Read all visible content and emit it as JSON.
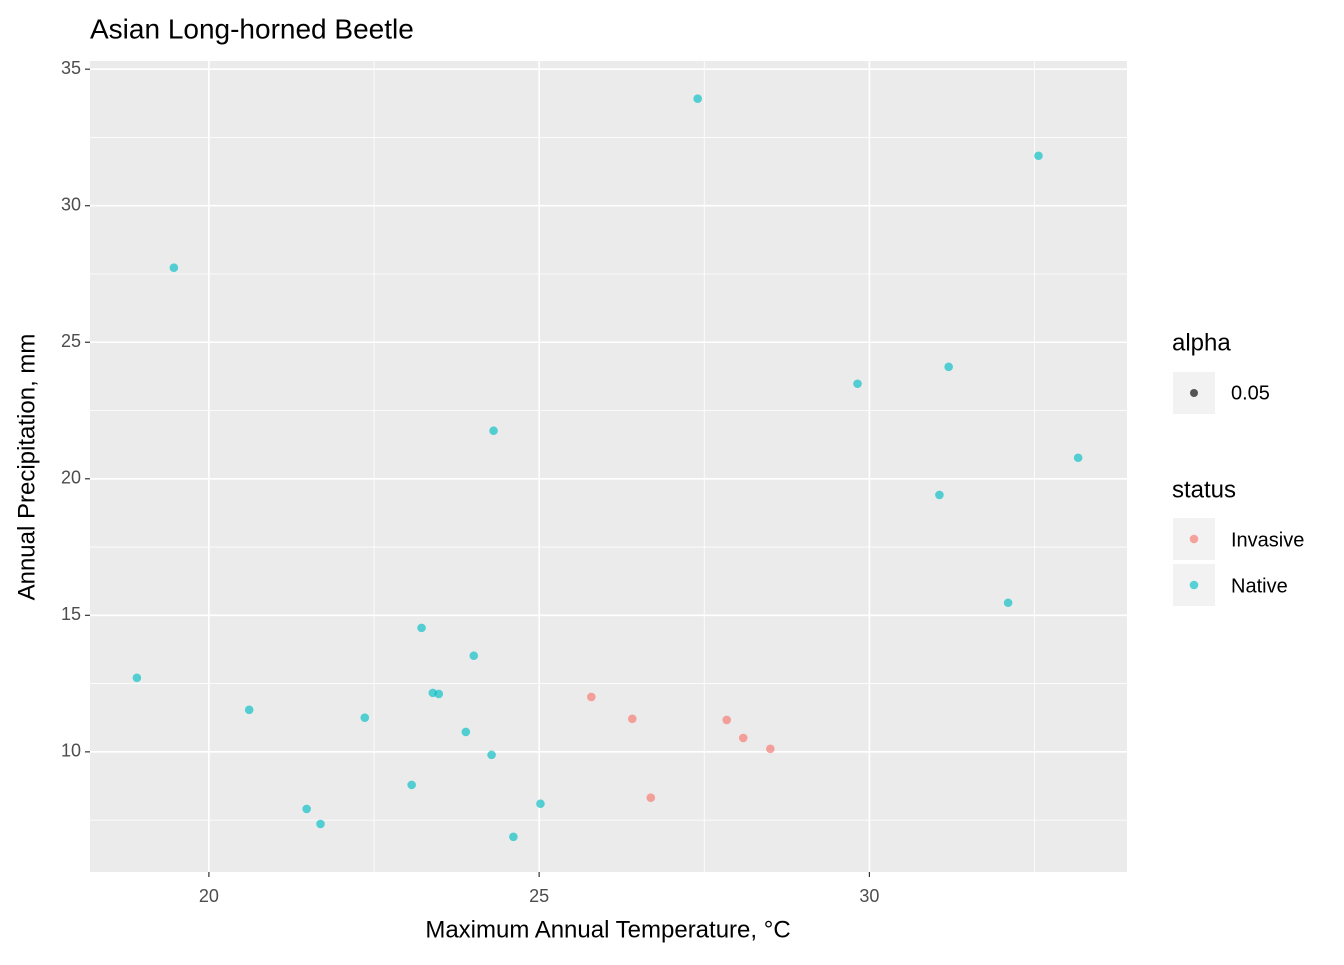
{
  "chart_data": {
    "type": "scatter",
    "title": "Asian Long-horned Beetle",
    "x_label": "Maximum Annual Temperature, °C",
    "y_label": "Annual Precipitation, mm",
    "xlim": [
      18.2,
      33.9
    ],
    "ylim": [
      5.6,
      35.3
    ],
    "xticks": [
      20,
      25,
      30
    ],
    "yticks": [
      10,
      15,
      20,
      25,
      30,
      35
    ],
    "grid": true,
    "legend_position": "right",
    "opacity": 0.65,
    "alpha_legend": {
      "title": "alpha",
      "label": "0.05"
    },
    "legend_title": "status",
    "series": [
      {
        "name": "Invasive",
        "color": "#F8766D",
        "x": [
          25.79,
          26.41,
          26.69,
          27.84,
          28.09,
          28.5
        ],
        "values": [
          12.01,
          11.21,
          8.32,
          11.17,
          10.51,
          10.11
        ]
      },
      {
        "name": "Native",
        "color": "#00BFC4",
        "x": [
          19.47,
          18.91,
          20.61,
          22.36,
          21.48,
          21.69,
          23.07,
          23.22,
          24.01,
          23.39,
          23.48,
          23.89,
          24.28,
          24.31,
          24.61,
          25.02,
          27.4,
          29.82,
          31.2,
          31.06,
          32.1,
          32.56,
          33.16
        ],
        "values": [
          27.73,
          12.71,
          11.54,
          11.25,
          7.91,
          7.36,
          8.79,
          14.54,
          13.52,
          12.16,
          12.12,
          10.73,
          9.89,
          21.76,
          6.89,
          8.1,
          33.92,
          23.48,
          24.1,
          19.41,
          15.46,
          31.83,
          20.77
        ]
      }
    ]
  }
}
